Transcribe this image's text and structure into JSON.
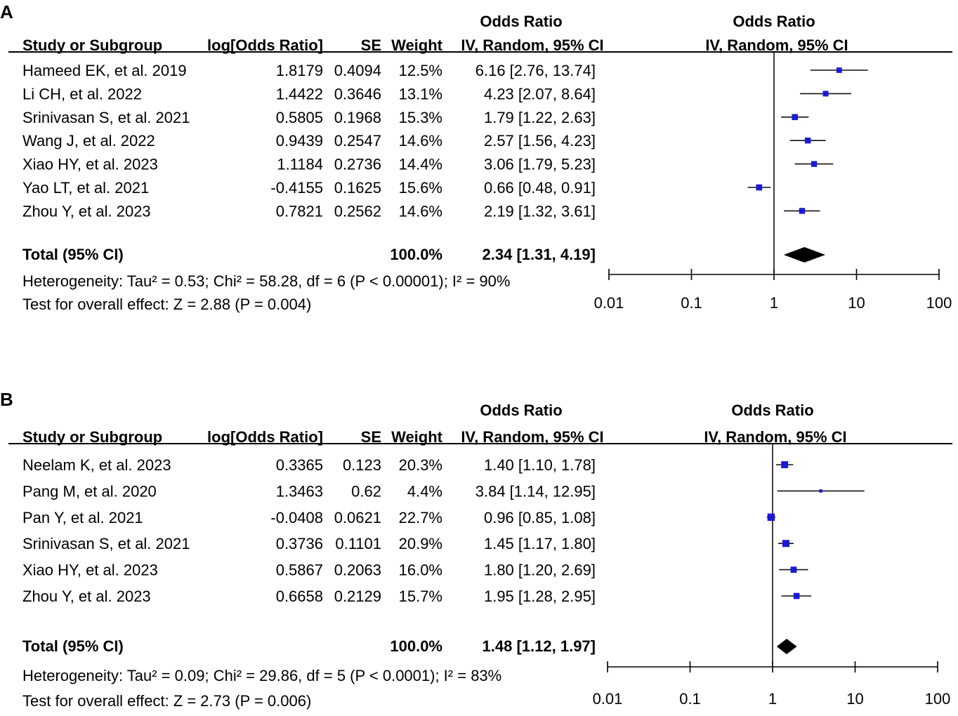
{
  "chart_data": [
    {
      "type": "forest",
      "panel_label": "A",
      "columns": {
        "group_label_left": "Odds Ratio",
        "group_label_right": "Odds Ratio",
        "study": "Study or Subgroup",
        "logor": "log[Odds Ratio]",
        "se": "SE",
        "weight": "Weight",
        "ci": "IV, Random, 95% CI",
        "plot_ci": "IV, Random, 95% CI"
      },
      "studies": [
        {
          "name": "Hameed EK, et al. 2019",
          "logor": "1.8179",
          "se": "0.4094",
          "weight": "12.5%",
          "ci_text": "6.16 [2.76, 13.74]",
          "or": 6.16,
          "lower": 2.76,
          "upper": 13.74,
          "w": 12.5
        },
        {
          "name": "Li CH, et al. 2022",
          "logor": "1.4422",
          "se": "0.3646",
          "weight": "13.1%",
          "ci_text": "4.23 [2.07, 8.64]",
          "or": 4.23,
          "lower": 2.07,
          "upper": 8.64,
          "w": 13.1
        },
        {
          "name": "Srinivasan S, et al. 2021",
          "logor": "0.5805",
          "se": "0.1968",
          "weight": "15.3%",
          "ci_text": "1.79 [1.22, 2.63]",
          "or": 1.79,
          "lower": 1.22,
          "upper": 2.63,
          "w": 15.3
        },
        {
          "name": "Wang J, et al. 2022",
          "logor": "0.9439",
          "se": "0.2547",
          "weight": "14.6%",
          "ci_text": "2.57 [1.56, 4.23]",
          "or": 2.57,
          "lower": 1.56,
          "upper": 4.23,
          "w": 14.6
        },
        {
          "name": "Xiao HY, et al. 2023",
          "logor": "1.1184",
          "se": "0.2736",
          "weight": "14.4%",
          "ci_text": "3.06 [1.79, 5.23]",
          "or": 3.06,
          "lower": 1.79,
          "upper": 5.23,
          "w": 14.4
        },
        {
          "name": "Yao LT, et al. 2021",
          "logor": "-0.4155",
          "se": "0.1625",
          "weight": "15.6%",
          "ci_text": "0.66 [0.48, 0.91]",
          "or": 0.66,
          "lower": 0.48,
          "upper": 0.91,
          "w": 15.6
        },
        {
          "name": "Zhou Y, et al. 2023",
          "logor": "0.7821",
          "se": "0.2562",
          "weight": "14.6%",
          "ci_text": "2.19 [1.32, 3.61]",
          "or": 2.19,
          "lower": 1.32,
          "upper": 3.61,
          "w": 14.6
        }
      ],
      "total": {
        "label": "Total (95% CI)",
        "weight": "100.0%",
        "ci_text": "2.34 [1.31, 4.19]",
        "or": 2.34,
        "lower": 1.31,
        "upper": 4.19
      },
      "heterogeneity": "Heterogeneity: Tau² = 0.53; Chi² = 58.28, df = 6 (P < 0.00001); I² = 90%",
      "overall_effect": "Test for overall effect: Z = 2.88 (P = 0.004)",
      "x_scale": "log",
      "xlim": [
        0.01,
        100
      ],
      "ticks": [
        0.01,
        0.1,
        1,
        10,
        100
      ],
      "tick_labels": [
        "0.01",
        "0.1",
        "1",
        "10",
        "100"
      ]
    },
    {
      "type": "forest",
      "panel_label": "B",
      "columns": {
        "group_label_left": "Odds Ratio",
        "group_label_right": "Odds Ratio",
        "study": "Study or Subgroup",
        "logor": "log[Odds Ratio]",
        "se": "SE",
        "weight": "Weight",
        "ci": "IV, Random, 95% CI",
        "plot_ci": "IV, Random, 95% CI"
      },
      "studies": [
        {
          "name": "Neelam K, et al. 2023",
          "logor": "0.3365",
          "se": "0.123",
          "weight": "20.3%",
          "ci_text": "1.40 [1.10, 1.78]",
          "or": 1.4,
          "lower": 1.1,
          "upper": 1.78,
          "w": 20.3
        },
        {
          "name": "Pang M, et al. 2020",
          "logor": "1.3463",
          "se": "0.62",
          "weight": "4.4%",
          "ci_text": "3.84 [1.14, 12.95]",
          "or": 3.84,
          "lower": 1.14,
          "upper": 12.95,
          "w": 4.4
        },
        {
          "name": "Pan Y, et al. 2021",
          "logor": "-0.0408",
          "se": "0.0621",
          "weight": "22.7%",
          "ci_text": "0.96 [0.85, 1.08]",
          "or": 0.96,
          "lower": 0.85,
          "upper": 1.08,
          "w": 22.7
        },
        {
          "name": "Srinivasan S, et al. 2021",
          "logor": "0.3736",
          "se": "0.1101",
          "weight": "20.9%",
          "ci_text": "1.45 [1.17, 1.80]",
          "or": 1.45,
          "lower": 1.17,
          "upper": 1.8,
          "w": 20.9
        },
        {
          "name": "Xiao HY, et al. 2023",
          "logor": "0.5867",
          "se": "0.2063",
          "weight": "16.0%",
          "ci_text": "1.80 [1.20, 2.69]",
          "or": 1.8,
          "lower": 1.2,
          "upper": 2.69,
          "w": 16.0
        },
        {
          "name": "Zhou Y, et al. 2023",
          "logor": "0.6658",
          "se": "0.2129",
          "weight": "15.7%",
          "ci_text": "1.95 [1.28, 2.95]",
          "or": 1.95,
          "lower": 1.28,
          "upper": 2.95,
          "w": 15.7
        }
      ],
      "total": {
        "label": "Total (95% CI)",
        "weight": "100.0%",
        "ci_text": "1.48 [1.12, 1.97]",
        "or": 1.48,
        "lower": 1.12,
        "upper": 1.97
      },
      "heterogeneity": "Heterogeneity: Tau² = 0.09; Chi² = 29.86, df = 5 (P < 0.0001); I² = 83%",
      "overall_effect": "Test for overall effect: Z = 2.73 (P = 0.006)",
      "x_scale": "log",
      "xlim": [
        0.01,
        100
      ],
      "ticks": [
        0.01,
        0.1,
        1,
        10,
        100
      ],
      "tick_labels": [
        "0.01",
        "0.1",
        "1",
        "10",
        "100"
      ]
    }
  ],
  "colors": {
    "square": "#1a1ad6",
    "line": "#111111",
    "diamond": "#000000"
  }
}
